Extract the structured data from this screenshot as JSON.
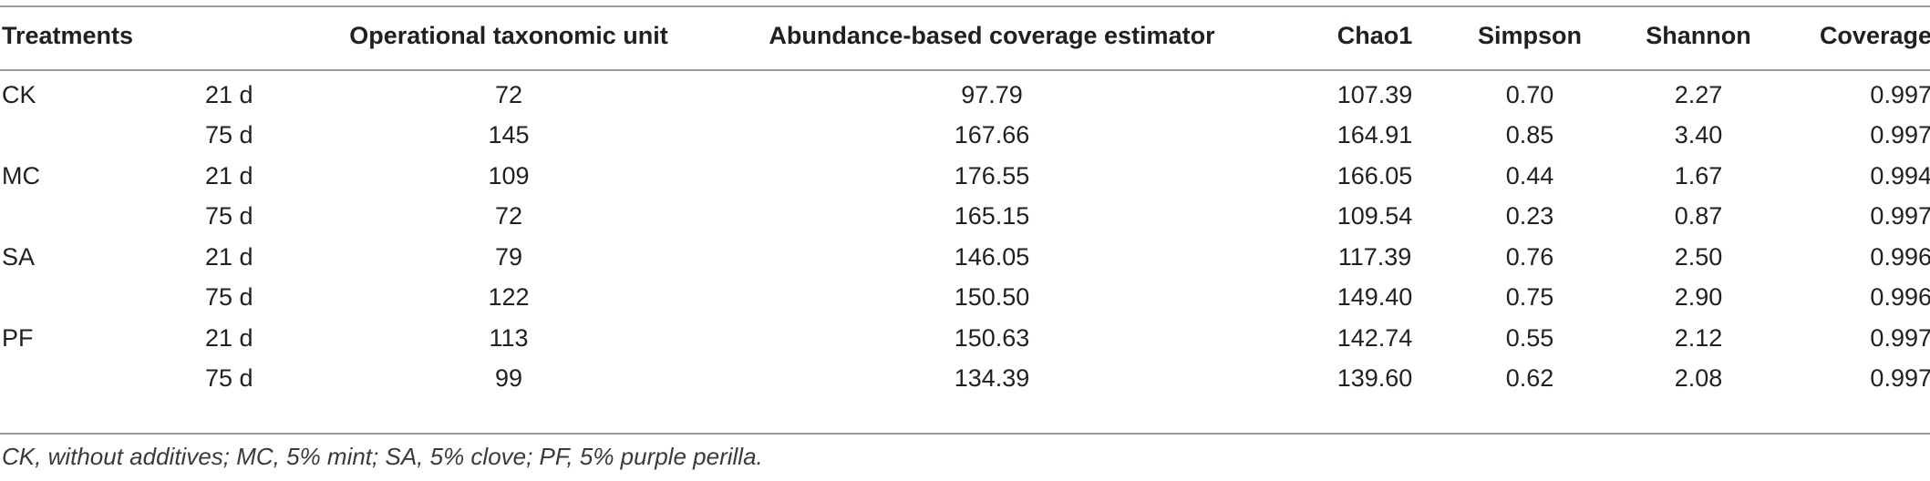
{
  "table": {
    "headers": [
      "Treatments",
      "",
      "Operational taxonomic unit",
      "Abundance-based coverage estimator",
      "Chao1",
      "Simpson",
      "Shannon",
      "Coverage"
    ],
    "rows": [
      [
        "CK",
        "21 d",
        "72",
        "97.79",
        "107.39",
        "0.70",
        "2.27",
        "0.997"
      ],
      [
        "",
        "75 d",
        "145",
        "167.66",
        "164.91",
        "0.85",
        "3.40",
        "0.997"
      ],
      [
        "MC",
        "21 d",
        "109",
        "176.55",
        "166.05",
        "0.44",
        "1.67",
        "0.994"
      ],
      [
        "",
        "75 d",
        "72",
        "165.15",
        "109.54",
        "0.23",
        "0.87",
        "0.997"
      ],
      [
        "SA",
        "21 d",
        "79",
        "146.05",
        "117.39",
        "0.76",
        "2.50",
        "0.996"
      ],
      [
        "",
        "75 d",
        "122",
        "150.50",
        "149.40",
        "0.75",
        "2.90",
        "0.996"
      ],
      [
        "PF",
        "21 d",
        "113",
        "150.63",
        "142.74",
        "0.55",
        "2.12",
        "0.997"
      ],
      [
        "",
        "75 d",
        "99",
        "134.39",
        "139.60",
        "0.62",
        "2.08",
        "0.997"
      ]
    ]
  },
  "footnote": "CK, without additives; MC, 5% mint; SA, 5% clove; PF, 5% purple perilla."
}
